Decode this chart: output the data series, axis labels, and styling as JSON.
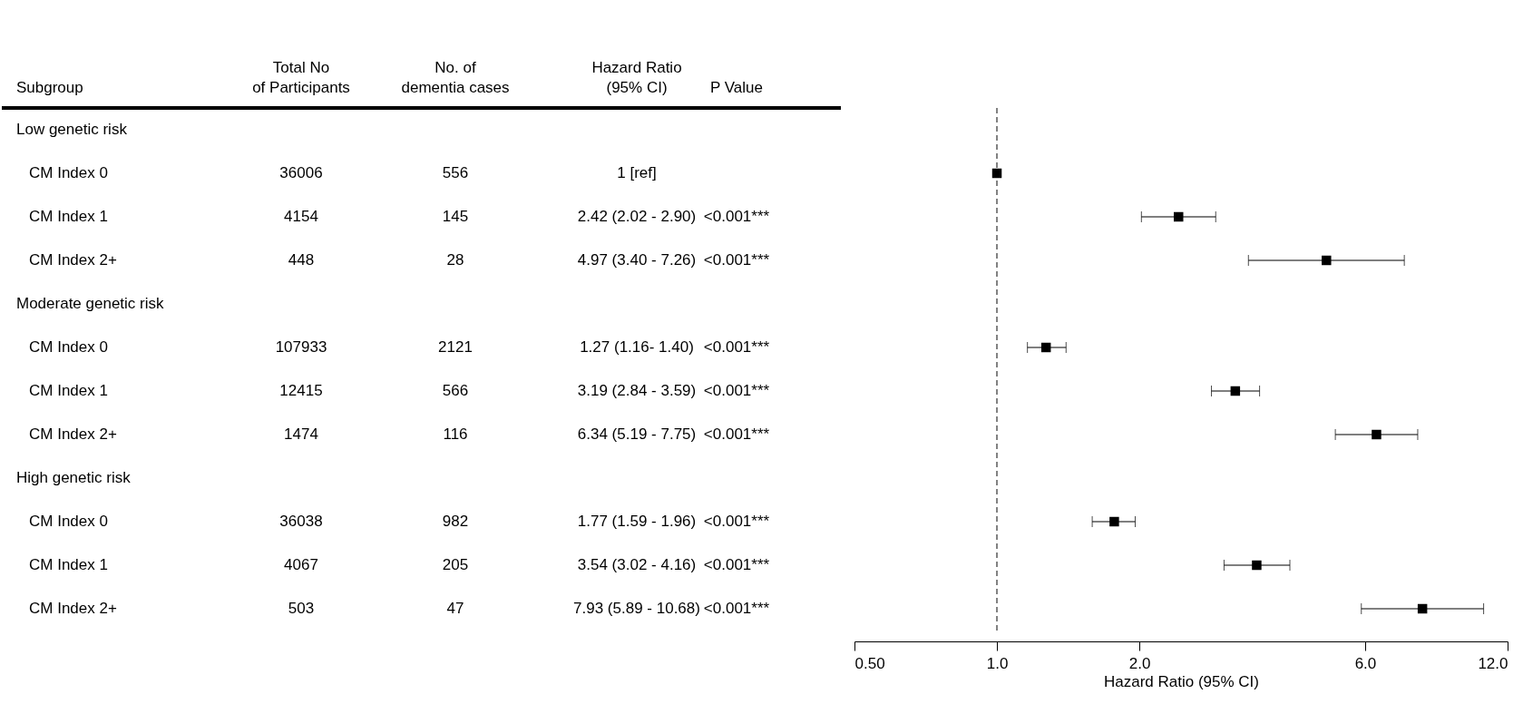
{
  "chart_data": [
    {
      "type": "other",
      "categories": [
        "Subgroup",
        "Total No\nof Participants",
        "No. of\ndementia cases",
        "Hazard Ratio\n(95% CI)",
        "P Value"
      ],
      "cell_labels": [
        [
          "Low genetic risk",
          null,
          null,
          null,
          null
        ],
        [
          "CM Index 0",
          "36006",
          "556",
          "1 [ref]",
          null
        ],
        [
          "CM Index 1",
          "4154",
          "145",
          "2.42 (2.02 - 2.90)",
          "<0.001***"
        ],
        [
          "CM Index 2+",
          "448",
          "28",
          "4.97 (3.40 - 7.26)",
          "<0.001***"
        ],
        [
          "Moderate genetic risk",
          null,
          null,
          null,
          null
        ],
        [
          "CM Index 0",
          "107933",
          "2121",
          "1.27 (1.16- 1.40)",
          "<0.001***"
        ],
        [
          "CM Index 1",
          "12415",
          "566",
          "3.19 (2.84 - 3.59)",
          "<0.001***"
        ],
        [
          "CM Index 2+",
          "1474",
          "116",
          "6.34 (5.19 - 7.75)",
          "<0.001***"
        ],
        [
          "High genetic risk",
          null,
          null,
          null,
          null
        ],
        [
          "CM Index 0",
          "36038",
          "982",
          "1.77 (1.59 - 1.96)",
          "<0.001***"
        ],
        [
          "CM Index 1",
          "4067",
          "205",
          "3.54 (3.02 - 4.16)",
          "<0.001***"
        ],
        [
          "CM Index 2+",
          "503",
          "47",
          "7.93 (5.89 - 10.68)",
          "<0.001***"
        ]
      ]
    },
    {
      "type": "scatter",
      "orientation": "horizontal",
      "log": "x",
      "marker": "square",
      "color": "#000000",
      "tick_labels": "x",
      "categories": [
        null,
        null,
        null,
        null,
        null,
        null,
        null,
        null,
        null,
        null,
        null,
        null
      ],
      "values": [
        null,
        1,
        2.42,
        4.97,
        null,
        1.27,
        3.19,
        6.34,
        null,
        1.77,
        3.54,
        7.93
      ],
      "errors": [
        null,
        null,
        [
          2.02,
          2.9
        ],
        [
          3.4,
          7.26
        ],
        null,
        [
          1.16,
          1.4
        ],
        [
          2.84,
          3.59
        ],
        [
          5.19,
          7.75
        ],
        null,
        [
          1.59,
          1.96
        ],
        [
          3.02,
          4.16
        ],
        [
          5.89,
          10.68
        ]
      ],
      "xlim": [
        0.5,
        12
      ],
      "xticks": [
        {
          "value": 0.5,
          "label": "0.50"
        },
        {
          "value": 1,
          "label": "1.0"
        },
        {
          "value": 2,
          "label": "2.0"
        },
        {
          "value": 6,
          "label": "6.0"
        },
        {
          "value": 12,
          "label": "12.0"
        }
      ],
      "xlabel": "Hazard Ratio (95% CI)",
      "ref_lines": [
        {
          "axis": "x",
          "value": 1,
          "label": null,
          "color": "#808080",
          "line_style": "dashed"
        }
      ]
    }
  ]
}
